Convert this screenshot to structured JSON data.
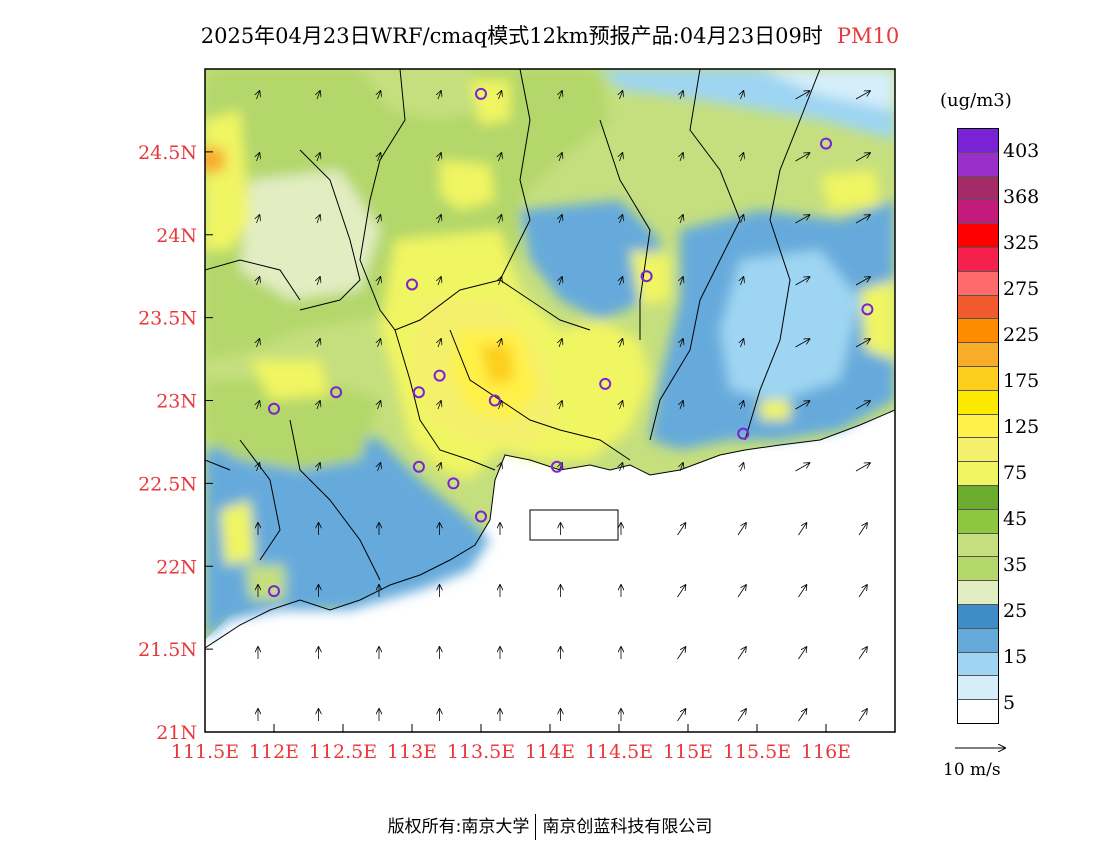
{
  "title": {
    "main": "2025年04月23日WRF/cmaq模式12km预报产品:04月23日09时",
    "variable": "PM10"
  },
  "axes": {
    "lon_labels": [
      "111.5E",
      "112E",
      "112.5E",
      "113E",
      "113.5E",
      "114E",
      "114.5E",
      "115E",
      "115.5E",
      "116E"
    ],
    "lon_values": [
      111.5,
      112,
      112.5,
      113,
      113.5,
      114,
      114.5,
      115,
      115.5,
      116
    ],
    "lat_labels": [
      "21N",
      "21.5N",
      "22N",
      "22.5N",
      "23N",
      "23.5N",
      "24N",
      "24.5N"
    ],
    "lat_values": [
      21,
      21.5,
      22,
      22.5,
      23,
      23.5,
      24,
      24.5
    ],
    "lon_range": [
      111.5,
      116.5
    ],
    "lat_range": [
      21,
      25
    ]
  },
  "legend": {
    "units": "(ug/m3)",
    "labels": [
      "403",
      "368",
      "325",
      "275",
      "225",
      "175",
      "125",
      "75",
      "45",
      "35",
      "25",
      "15",
      "5"
    ],
    "colors": [
      "#7b22d4",
      "#9b2fc9",
      "#a52a68",
      "#c31a7b",
      "#ff0000",
      "#f5204e",
      "#ff6a6a",
      "#f05a2d",
      "#ff8c00",
      "#f8ac2a",
      "#fccf1f",
      "#fde800",
      "#fff14a",
      "#f4f06c",
      "#f0f562",
      "#6aab30",
      "#8dc63f",
      "#c5df7e",
      "#b3d76b",
      "#e2edc2",
      "#3e8cc8",
      "#66aadc",
      "#9ed5f2",
      "#d6eefa",
      "#ffffff"
    ]
  },
  "wind_reference": {
    "label": "10 m/s"
  },
  "stations": [
    [
      112.0,
      21.85
    ],
    [
      112.0,
      22.95
    ],
    [
      112.45,
      23.05
    ],
    [
      113.0,
      23.7
    ],
    [
      113.05,
      23.05
    ],
    [
      113.2,
      23.15
    ],
    [
      113.05,
      22.6
    ],
    [
      113.3,
      22.5
    ],
    [
      113.6,
      23.0
    ],
    [
      113.5,
      24.85
    ],
    [
      114.05,
      22.6
    ],
    [
      114.4,
      23.1
    ],
    [
      114.7,
      23.75
    ],
    [
      113.5,
      22.3
    ],
    [
      115.4,
      22.8
    ],
    [
      116.0,
      24.55
    ],
    [
      116.3,
      23.55
    ]
  ],
  "copyright": {
    "left": "版权所有:南京大学",
    "right": "南京创蓝科技有限公司"
  }
}
